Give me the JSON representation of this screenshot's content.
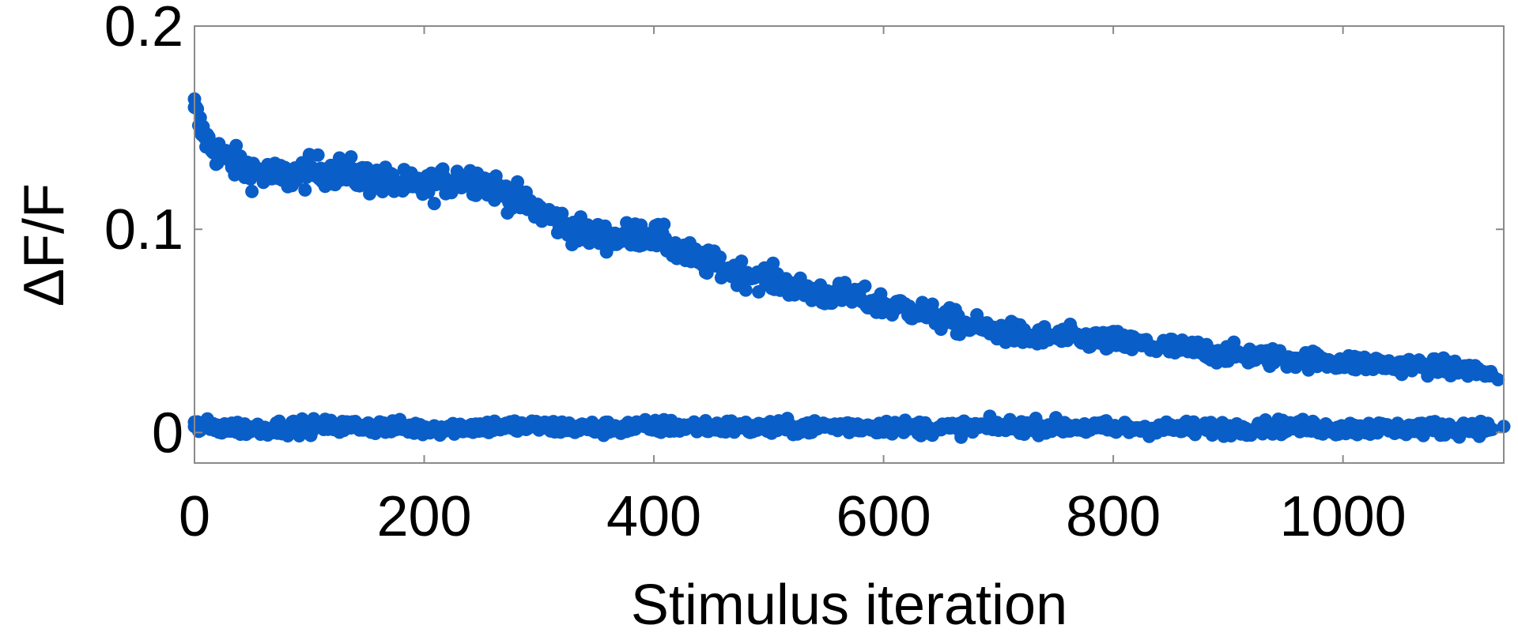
{
  "chart_data": {
    "type": "scatter",
    "title": "",
    "xlabel": "Stimulus iteration",
    "ylabel": "ΔF/F",
    "xlim": [
      0,
      1140
    ],
    "ylim": [
      -0.015,
      0.2
    ],
    "xticks": [
      0,
      200,
      400,
      600,
      800,
      1000
    ],
    "xtick_labels": [
      "0",
      "200",
      "400",
      "600",
      "800",
      "1000"
    ],
    "yticks": [
      0,
      0.1,
      0.2
    ],
    "ytick_labels": [
      "0",
      "0.1",
      "0.2"
    ],
    "grid": false,
    "legend": "none",
    "marker_color": "#0a5ec8",
    "series": [
      {
        "values_described": "upper trace",
        "x": [
          0,
          5,
          10,
          15,
          20,
          25,
          30,
          40,
          50,
          60,
          70,
          80,
          90,
          100,
          110,
          120,
          130,
          140,
          150,
          160,
          170,
          180,
          190,
          200,
          210,
          220,
          230,
          240,
          250,
          260,
          270,
          280,
          290,
          300,
          310,
          320,
          330,
          340,
          350,
          360,
          370,
          380,
          390,
          400,
          410,
          420,
          430,
          440,
          450,
          460,
          470,
          480,
          490,
          500,
          510,
          520,
          530,
          540,
          550,
          560,
          570,
          580,
          590,
          600,
          610,
          620,
          630,
          640,
          650,
          660,
          670,
          680,
          690,
          700,
          710,
          720,
          730,
          740,
          750,
          760,
          770,
          780,
          790,
          800,
          810,
          820,
          830,
          840,
          850,
          860,
          870,
          880,
          890,
          900,
          910,
          920,
          930,
          940,
          950,
          960,
          970,
          980,
          990,
          1000,
          1010,
          1020,
          1030,
          1040,
          1050,
          1060,
          1070,
          1080,
          1090,
          1100,
          1110,
          1120,
          1130,
          1135
        ],
        "y": [
          0.16,
          0.15,
          0.145,
          0.14,
          0.138,
          0.136,
          0.134,
          0.131,
          0.129,
          0.127,
          0.126,
          0.126,
          0.127,
          0.128,
          0.129,
          0.129,
          0.128,
          0.127,
          0.125,
          0.124,
          0.123,
          0.122,
          0.121,
          0.121,
          0.122,
          0.124,
          0.125,
          0.125,
          0.124,
          0.121,
          0.118,
          0.115,
          0.112,
          0.109,
          0.106,
          0.103,
          0.1,
          0.098,
          0.097,
          0.096,
          0.096,
          0.097,
          0.098,
          0.097,
          0.094,
          0.09,
          0.087,
          0.085,
          0.083,
          0.081,
          0.079,
          0.078,
          0.077,
          0.076,
          0.074,
          0.072,
          0.07,
          0.069,
          0.068,
          0.068,
          0.067,
          0.066,
          0.064,
          0.063,
          0.062,
          0.061,
          0.06,
          0.058,
          0.056,
          0.055,
          0.053,
          0.052,
          0.051,
          0.05,
          0.049,
          0.048,
          0.047,
          0.047,
          0.047,
          0.047,
          0.046,
          0.046,
          0.045,
          0.045,
          0.044,
          0.043,
          0.043,
          0.042,
          0.042,
          0.041,
          0.041,
          0.04,
          0.039,
          0.039,
          0.038,
          0.038,
          0.037,
          0.037,
          0.036,
          0.036,
          0.036,
          0.035,
          0.035,
          0.035,
          0.034,
          0.034,
          0.034,
          0.033,
          0.033,
          0.033,
          0.033,
          0.032,
          0.032,
          0.031,
          0.031,
          0.03,
          0.028,
          0.026
        ]
      },
      {
        "values_described": "lower trace",
        "x": [
          0,
          50,
          100,
          150,
          200,
          250,
          300,
          350,
          400,
          450,
          500,
          550,
          600,
          650,
          700,
          750,
          800,
          850,
          900,
          950,
          1000,
          1050,
          1100,
          1140
        ],
        "y": [
          0.003,
          0.002,
          0.003,
          0.003,
          0.002,
          0.003,
          0.003,
          0.002,
          0.003,
          0.003,
          0.002,
          0.003,
          0.003,
          0.002,
          0.003,
          0.003,
          0.002,
          0.002,
          0.002,
          0.003,
          0.002,
          0.002,
          0.002,
          0.003
        ]
      }
    ]
  }
}
